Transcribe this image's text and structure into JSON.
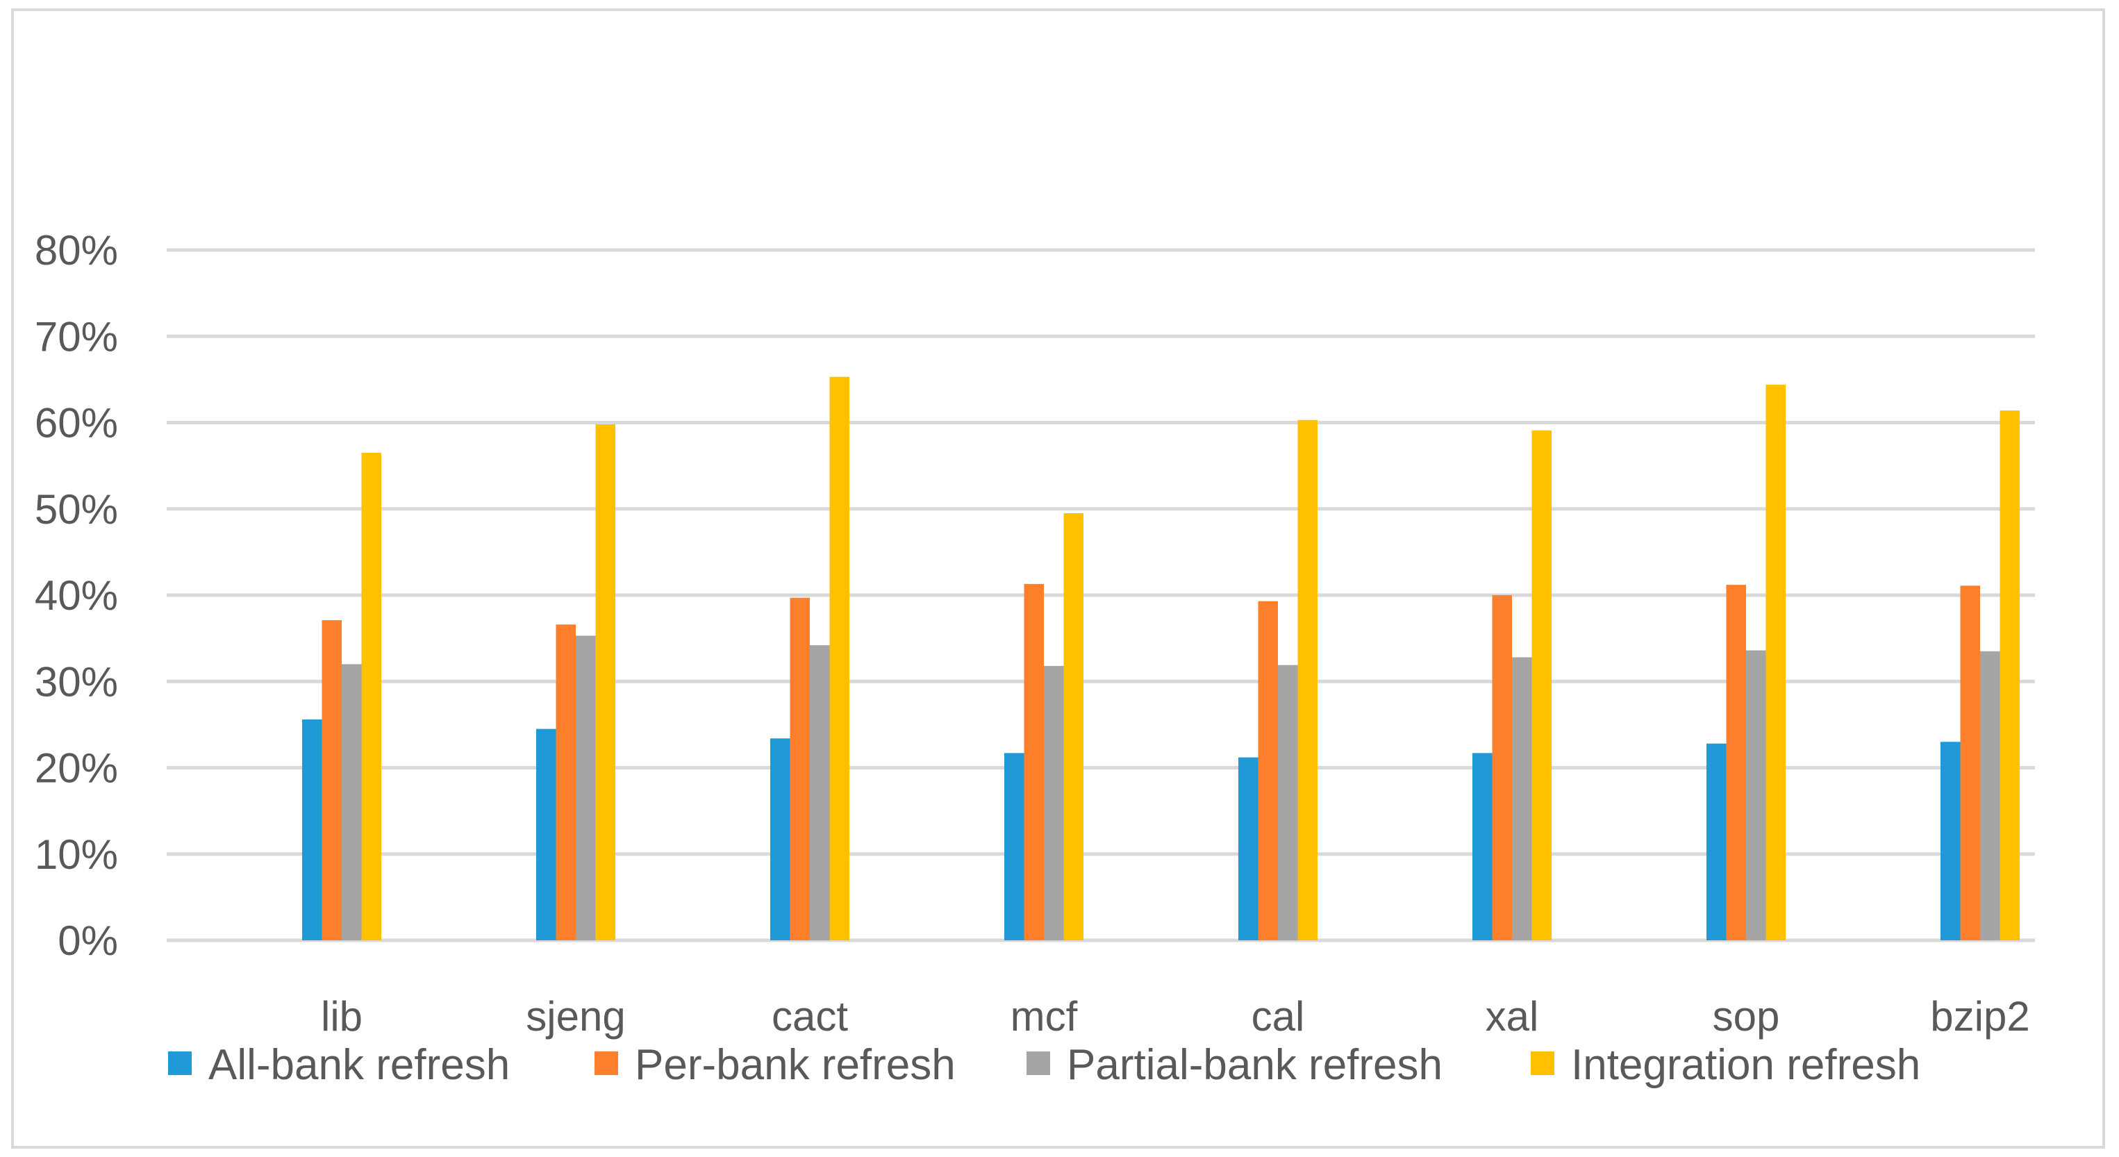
{
  "chart_data": {
    "type": "bar",
    "categories": [
      "lib",
      "sjeng",
      "cact",
      "mcf",
      "cal",
      "xal",
      "sop",
      "bzip2"
    ],
    "series": [
      {
        "name": "All-bank refresh",
        "color": "#1f9ad6",
        "values": [
          25.6,
          24.5,
          23.4,
          21.7,
          21.2,
          21.7,
          22.8,
          23.0
        ]
      },
      {
        "name": "Per-bank refresh",
        "color": "#fd7f2c",
        "values": [
          37.1,
          36.6,
          39.7,
          41.3,
          39.3,
          40.0,
          41.2,
          41.1
        ]
      },
      {
        "name": "Partial-bank refresh",
        "color": "#a5a5a5",
        "values": [
          32.0,
          35.3,
          34.2,
          31.8,
          31.9,
          32.8,
          33.6,
          33.5
        ]
      },
      {
        "name": "Integration refresh",
        "color": "#ffc000",
        "values": [
          56.5,
          59.8,
          65.3,
          49.5,
          60.3,
          59.1,
          64.4,
          61.4
        ]
      }
    ],
    "yticks": [
      "0%",
      "10%",
      "20%",
      "30%",
      "40%",
      "50%",
      "60%",
      "70%",
      "80%"
    ],
    "ylim": [
      0,
      80
    ],
    "ylabel": "",
    "xlabel": "",
    "title": "",
    "grid": true,
    "legend_position": "bottom"
  }
}
